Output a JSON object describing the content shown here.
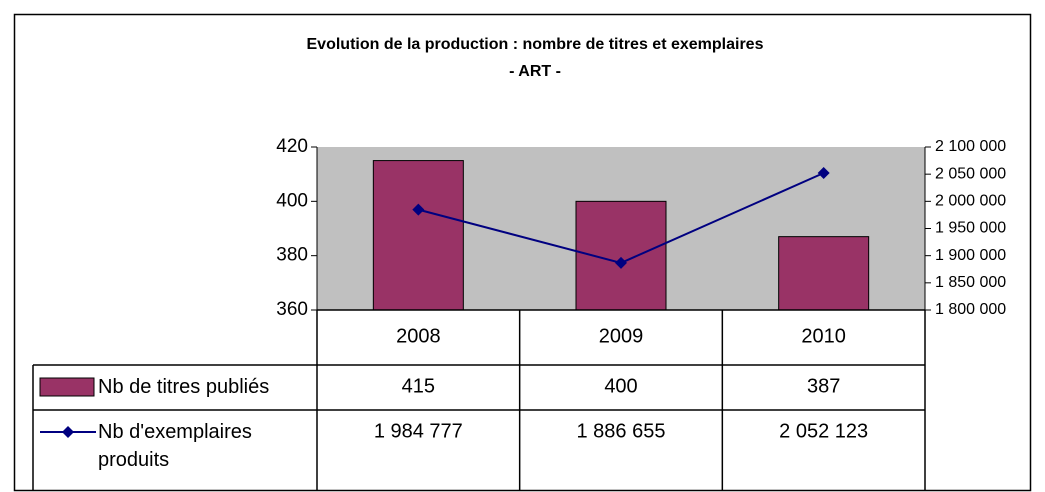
{
  "chart_data": {
    "type": "bar-line",
    "title": "Evolution de la production : nombre de titres et exemplaires",
    "subtitle": "- ART -",
    "categories": [
      "2008",
      "2009",
      "2010"
    ],
    "series": [
      {
        "name": "Nb de titres publiés",
        "color": "#993366",
        "values": [
          415,
          400,
          387
        ]
      },
      {
        "name": "Nb d'exemplaires produits",
        "color": "#000080",
        "axis": "y2",
        "values": [
          1984777,
          1886655,
          2052123
        ],
        "value_labels": [
          "1 984 777",
          "1 886 655",
          "2 052 123"
        ]
      }
    ],
    "ylim": [
      360,
      420
    ],
    "yticks": [
      360,
      380,
      400,
      420
    ],
    "y2lim": [
      1800000,
      2100000
    ],
    "y2ticks": [
      {
        "value": 1800000,
        "label": "1 800 000"
      },
      {
        "value": 1850000,
        "label": "1 850 000"
      },
      {
        "value": 1900000,
        "label": "1 900 000"
      },
      {
        "value": 1950000,
        "label": "1 950 000"
      },
      {
        "value": 2000000,
        "label": "2 000 000"
      },
      {
        "value": 2050000,
        "label": "2 050 000"
      },
      {
        "value": 2100000,
        "label": "2 100 000"
      }
    ],
    "plot_background": "#c0c0c0"
  }
}
